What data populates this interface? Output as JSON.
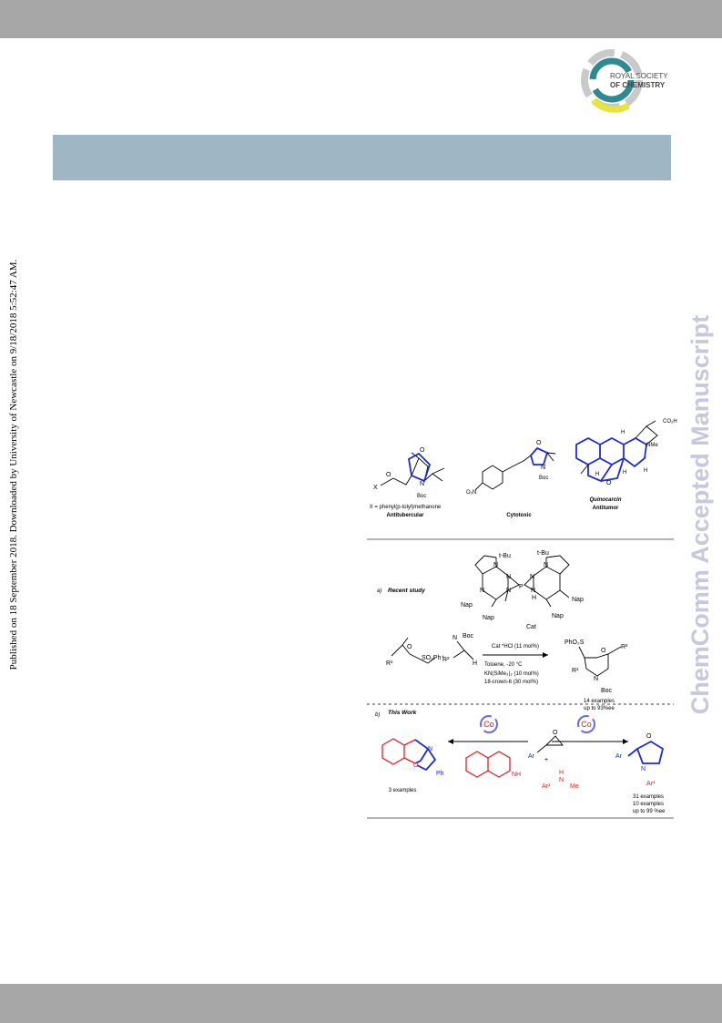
{
  "sidebar_left": "Published on 18 September 2018. Downloaded by University of Newcastle on 9/18/2018 5:52:47 AM.",
  "sidebar_right": "ChemComm Accepted Manuscript",
  "logo": {
    "line1": "ROYAL SOCIETY",
    "line2": "OF CHEMISTRY"
  },
  "figure1": {
    "labels": [
      "X",
      "O",
      "O",
      "N",
      "Boc",
      "X = phenyl(p-tolyl)methanone",
      "Antitubercular",
      "O₂N",
      "O",
      "N",
      "Boc",
      "Cytotoxic",
      "CO₂H",
      "H",
      "NMe",
      "H",
      "H",
      "O",
      "H",
      "Quinocarcin",
      "Antitumor"
    ]
  },
  "scheme": {
    "labels": [
      "a)",
      "Recent study",
      "t-Bu",
      "t-Bu",
      "N",
      "N",
      "N",
      "N",
      "P",
      "N",
      "N",
      "N",
      "H",
      "Nap",
      "Nap",
      "Nap",
      "Nap",
      "Cat",
      "O",
      "R¹",
      "SO₂Ph⁺",
      "N",
      "Boc",
      "R²",
      "H",
      "Cat *HCl (11 mol%)",
      "Toluene, -20 °C",
      "KN(SiMe₃)₂ (10 mol%)",
      "18-crown-6 (30 mol%)",
      "PhO₂S",
      "O",
      "R²",
      "R¹",
      "N",
      "Boc",
      "14 examples",
      "up to 93%ee",
      "b)",
      "This Work",
      "Co",
      "Co",
      "N",
      "O",
      "Ph",
      "3 examples",
      "NH",
      "Ar",
      "O",
      "+",
      "Ar¹",
      "H",
      "N",
      "Me",
      "O",
      "Ar",
      "N",
      "Ar¹",
      "31 examples",
      "10 examples",
      "up to 99 %ee"
    ]
  }
}
